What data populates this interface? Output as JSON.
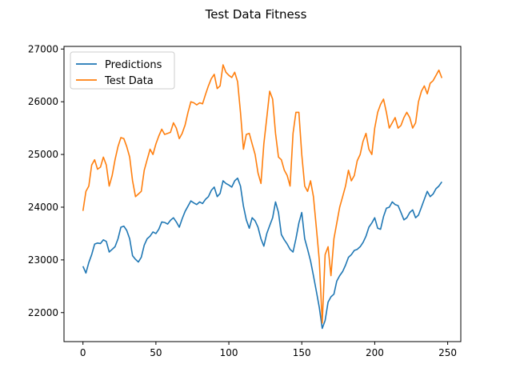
{
  "chart_data": {
    "type": "line",
    "title": "Test Data Fitness",
    "xlabel": "",
    "ylabel": "",
    "xlim": [
      -13,
      259
    ],
    "ylim": [
      21450,
      27050
    ],
    "xticks": [
      0,
      50,
      100,
      150,
      200,
      250
    ],
    "yticks": [
      22000,
      23000,
      24000,
      25000,
      26000,
      27000
    ],
    "grid": false,
    "legend_position": "top-left",
    "colors": {
      "Predictions": "#1f77b4",
      "Test Data": "#ff7f0e"
    },
    "series": [
      {
        "name": "Predictions",
        "x": [
          0,
          2,
          4,
          6,
          8,
          10,
          12,
          14,
          16,
          18,
          20,
          22,
          24,
          26,
          28,
          30,
          32,
          34,
          36,
          38,
          40,
          42,
          44,
          46,
          48,
          50,
          52,
          54,
          56,
          58,
          60,
          62,
          64,
          66,
          68,
          70,
          72,
          74,
          76,
          78,
          80,
          82,
          84,
          86,
          88,
          90,
          92,
          94,
          96,
          98,
          100,
          102,
          104,
          106,
          108,
          110,
          112,
          114,
          116,
          118,
          120,
          122,
          124,
          126,
          128,
          130,
          132,
          134,
          136,
          138,
          140,
          142,
          144,
          146,
          148,
          150,
          152,
          154,
          156,
          158,
          160,
          162,
          164,
          166,
          168,
          170,
          172,
          174,
          176,
          178,
          180,
          182,
          184,
          186,
          188,
          190,
          192,
          194,
          196,
          198,
          200,
          202,
          204,
          206,
          208,
          210,
          212,
          214,
          216,
          218,
          220,
          222,
          224,
          226,
          228,
          230,
          232,
          234,
          236,
          238,
          240,
          242,
          244,
          246
        ],
        "values": [
          22880,
          22750,
          22950,
          23100,
          23300,
          23320,
          23310,
          23380,
          23350,
          23150,
          23200,
          23250,
          23400,
          23620,
          23640,
          23560,
          23400,
          23080,
          23010,
          22960,
          23050,
          23280,
          23400,
          23450,
          23530,
          23500,
          23580,
          23720,
          23710,
          23680,
          23750,
          23800,
          23720,
          23620,
          23780,
          23920,
          24020,
          24120,
          24080,
          24050,
          24100,
          24070,
          24150,
          24200,
          24320,
          24380,
          24200,
          24260,
          24500,
          24450,
          24420,
          24380,
          24500,
          24550,
          24400,
          24020,
          23760,
          23600,
          23800,
          23740,
          23620,
          23400,
          23260,
          23500,
          23650,
          23800,
          24100,
          23900,
          23480,
          23380,
          23300,
          23200,
          23150,
          23400,
          23700,
          23900,
          23400,
          23200,
          22980,
          22700,
          22400,
          22100,
          21700,
          21850,
          22200,
          22300,
          22350,
          22600,
          22700,
          22780,
          22900,
          23050,
          23100,
          23180,
          23200,
          23250,
          23330,
          23450,
          23620,
          23700,
          23800,
          23600,
          23580,
          23820,
          23980,
          24000,
          24100,
          24050,
          24030,
          23900,
          23760,
          23800,
          23900,
          23950,
          23800,
          23850,
          24000,
          24150,
          24300,
          24200,
          24250,
          24350,
          24400,
          24480
        ]
      },
      {
        "name": "Test Data",
        "x": [
          0,
          2,
          4,
          6,
          8,
          10,
          12,
          14,
          16,
          18,
          20,
          22,
          24,
          26,
          28,
          30,
          32,
          34,
          36,
          38,
          40,
          42,
          44,
          46,
          48,
          50,
          52,
          54,
          56,
          58,
          60,
          62,
          64,
          66,
          68,
          70,
          72,
          74,
          76,
          78,
          80,
          82,
          84,
          86,
          88,
          90,
          92,
          94,
          96,
          98,
          100,
          102,
          104,
          106,
          108,
          110,
          112,
          114,
          116,
          118,
          120,
          122,
          124,
          126,
          128,
          130,
          132,
          134,
          136,
          138,
          140,
          142,
          144,
          146,
          148,
          150,
          152,
          154,
          156,
          158,
          160,
          162,
          164,
          166,
          168,
          170,
          172,
          174,
          176,
          178,
          180,
          182,
          184,
          186,
          188,
          190,
          192,
          194,
          196,
          198,
          200,
          202,
          204,
          206,
          208,
          210,
          212,
          214,
          216,
          218,
          220,
          222,
          224,
          226,
          228,
          230,
          232,
          234,
          236,
          238,
          240,
          242,
          244,
          246
        ],
        "values": [
          23930,
          24300,
          24400,
          24800,
          24900,
          24720,
          24760,
          24950,
          24800,
          24400,
          24600,
          24900,
          25150,
          25320,
          25300,
          25150,
          24950,
          24500,
          24200,
          24250,
          24300,
          24700,
          24900,
          25100,
          25000,
          25200,
          25350,
          25480,
          25380,
          25400,
          25420,
          25600,
          25500,
          25300,
          25400,
          25560,
          25800,
          26000,
          25980,
          25940,
          25980,
          25960,
          26140,
          26300,
          26440,
          26520,
          26250,
          26300,
          26700,
          26560,
          26500,
          26460,
          26560,
          26380,
          25800,
          25100,
          25380,
          25400,
          25200,
          25000,
          24650,
          24450,
          25200,
          25700,
          26200,
          26050,
          25400,
          24950,
          24900,
          24700,
          24600,
          24400,
          25400,
          25800,
          25800,
          25000,
          24400,
          24300,
          24500,
          24200,
          23600,
          23000,
          21800,
          23100,
          23250,
          22700,
          23400,
          23700,
          24000,
          24200,
          24400,
          24700,
          24500,
          24600,
          24880,
          25000,
          25250,
          25400,
          25100,
          25000,
          25500,
          25800,
          25950,
          26050,
          25800,
          25500,
          25600,
          25700,
          25500,
          25550,
          25700,
          25800,
          25700,
          25500,
          25600,
          26000,
          26200,
          26300,
          26150,
          26350,
          26400,
          26500,
          26600,
          26450
        ]
      }
    ]
  }
}
